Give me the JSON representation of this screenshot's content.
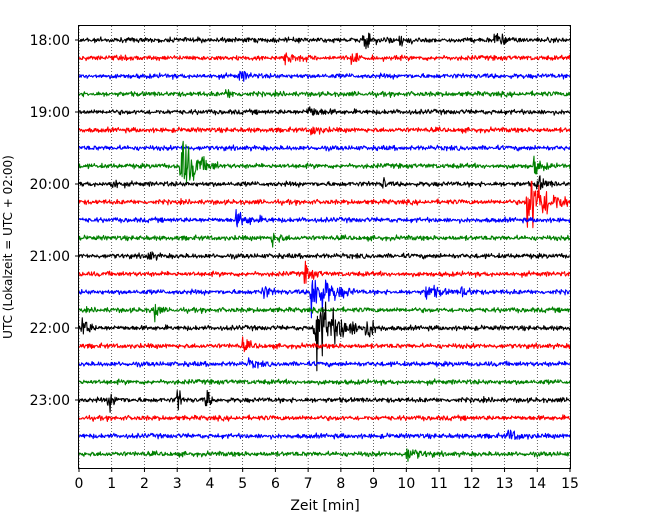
{
  "chart_data": {
    "type": "line",
    "title": "",
    "xlabel": "Zeit  [min]",
    "ylabel": "UTC (Lokalzeit = UTC + 02:00)",
    "xlim": [
      0,
      15
    ],
    "x_ticks": [
      "0",
      "1",
      "2",
      "3",
      "4",
      "5",
      "6",
      "7",
      "8",
      "9",
      "10",
      "11",
      "12",
      "13",
      "14",
      "15"
    ],
    "y_tick_labels": [
      "18:00",
      "19:00",
      "20:00",
      "21:00",
      "22:00",
      "23:00"
    ],
    "grid": "vertical dotted",
    "trace_colors": [
      "#000000",
      "#ff0000",
      "#0000ff",
      "#008000"
    ],
    "traces": [
      {
        "start": "18:00",
        "color": "#000000"
      },
      {
        "start": "18:15",
        "color": "#ff0000"
      },
      {
        "start": "18:30",
        "color": "#0000ff"
      },
      {
        "start": "18:45",
        "color": "#008000"
      },
      {
        "start": "19:00",
        "color": "#000000"
      },
      {
        "start": "19:15",
        "color": "#ff0000"
      },
      {
        "start": "19:30",
        "color": "#0000ff"
      },
      {
        "start": "19:45",
        "color": "#008000"
      },
      {
        "start": "20:00",
        "color": "#000000"
      },
      {
        "start": "20:15",
        "color": "#ff0000"
      },
      {
        "start": "20:30",
        "color": "#0000ff"
      },
      {
        "start": "20:45",
        "color": "#008000"
      },
      {
        "start": "21:00",
        "color": "#000000"
      },
      {
        "start": "21:15",
        "color": "#ff0000"
      },
      {
        "start": "21:30",
        "color": "#0000ff"
      },
      {
        "start": "21:45",
        "color": "#008000"
      },
      {
        "start": "22:00",
        "color": "#000000"
      },
      {
        "start": "22:15",
        "color": "#ff0000"
      },
      {
        "start": "22:30",
        "color": "#0000ff"
      },
      {
        "start": "22:45",
        "color": "#008000"
      },
      {
        "start": "23:00",
        "color": "#000000"
      },
      {
        "start": "23:15",
        "color": "#ff0000"
      },
      {
        "start": "23:30",
        "color": "#0000ff"
      },
      {
        "start": "23:45",
        "color": "#008000"
      }
    ]
  }
}
